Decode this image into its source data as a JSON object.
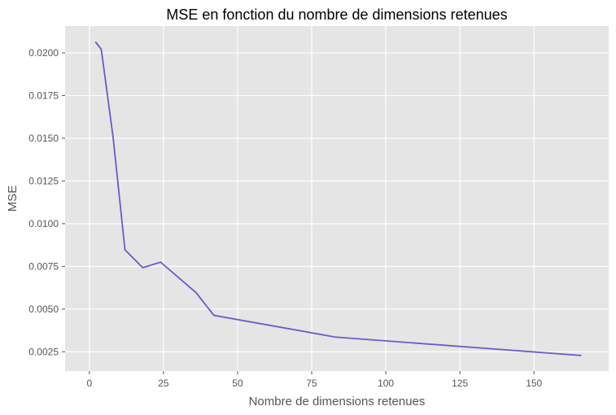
{
  "colors": {
    "panel_bg": "#E5E5E5",
    "grid": "#FFFFFF",
    "line": "#6A5ACD",
    "tick_text": "#555555",
    "title_text": "#000000"
  },
  "chart_data": {
    "type": "line",
    "title": "MSE en fonction du nombre de dimensions retenues",
    "xlabel": "Nombre de dimensions retenues",
    "ylabel": "MSE",
    "xlim": [
      -8.2,
      175.2
    ],
    "ylim": [
      0.00137,
      0.02157
    ],
    "grid": true,
    "x_ticks": [
      0,
      25,
      50,
      75,
      100,
      125,
      150
    ],
    "x_tick_labels": [
      "0",
      "25",
      "50",
      "75",
      "100",
      "125",
      "150"
    ],
    "y_ticks": [
      0.0025,
      0.005,
      0.0075,
      0.01,
      0.0125,
      0.015,
      0.0175,
      0.02
    ],
    "y_tick_labels": [
      "0.0025",
      "0.0050",
      "0.0075",
      "0.0100",
      "0.0125",
      "0.0150",
      "0.0175",
      "0.0200"
    ],
    "series": [
      {
        "name": "MSE",
        "x": [
          2,
          4,
          8,
          12,
          18,
          24,
          36,
          42,
          83,
          166
        ],
        "values": [
          0.02065,
          0.02021,
          0.01505,
          0.00847,
          0.00742,
          0.00775,
          0.00596,
          0.00463,
          0.00336,
          0.00228
        ]
      }
    ]
  }
}
